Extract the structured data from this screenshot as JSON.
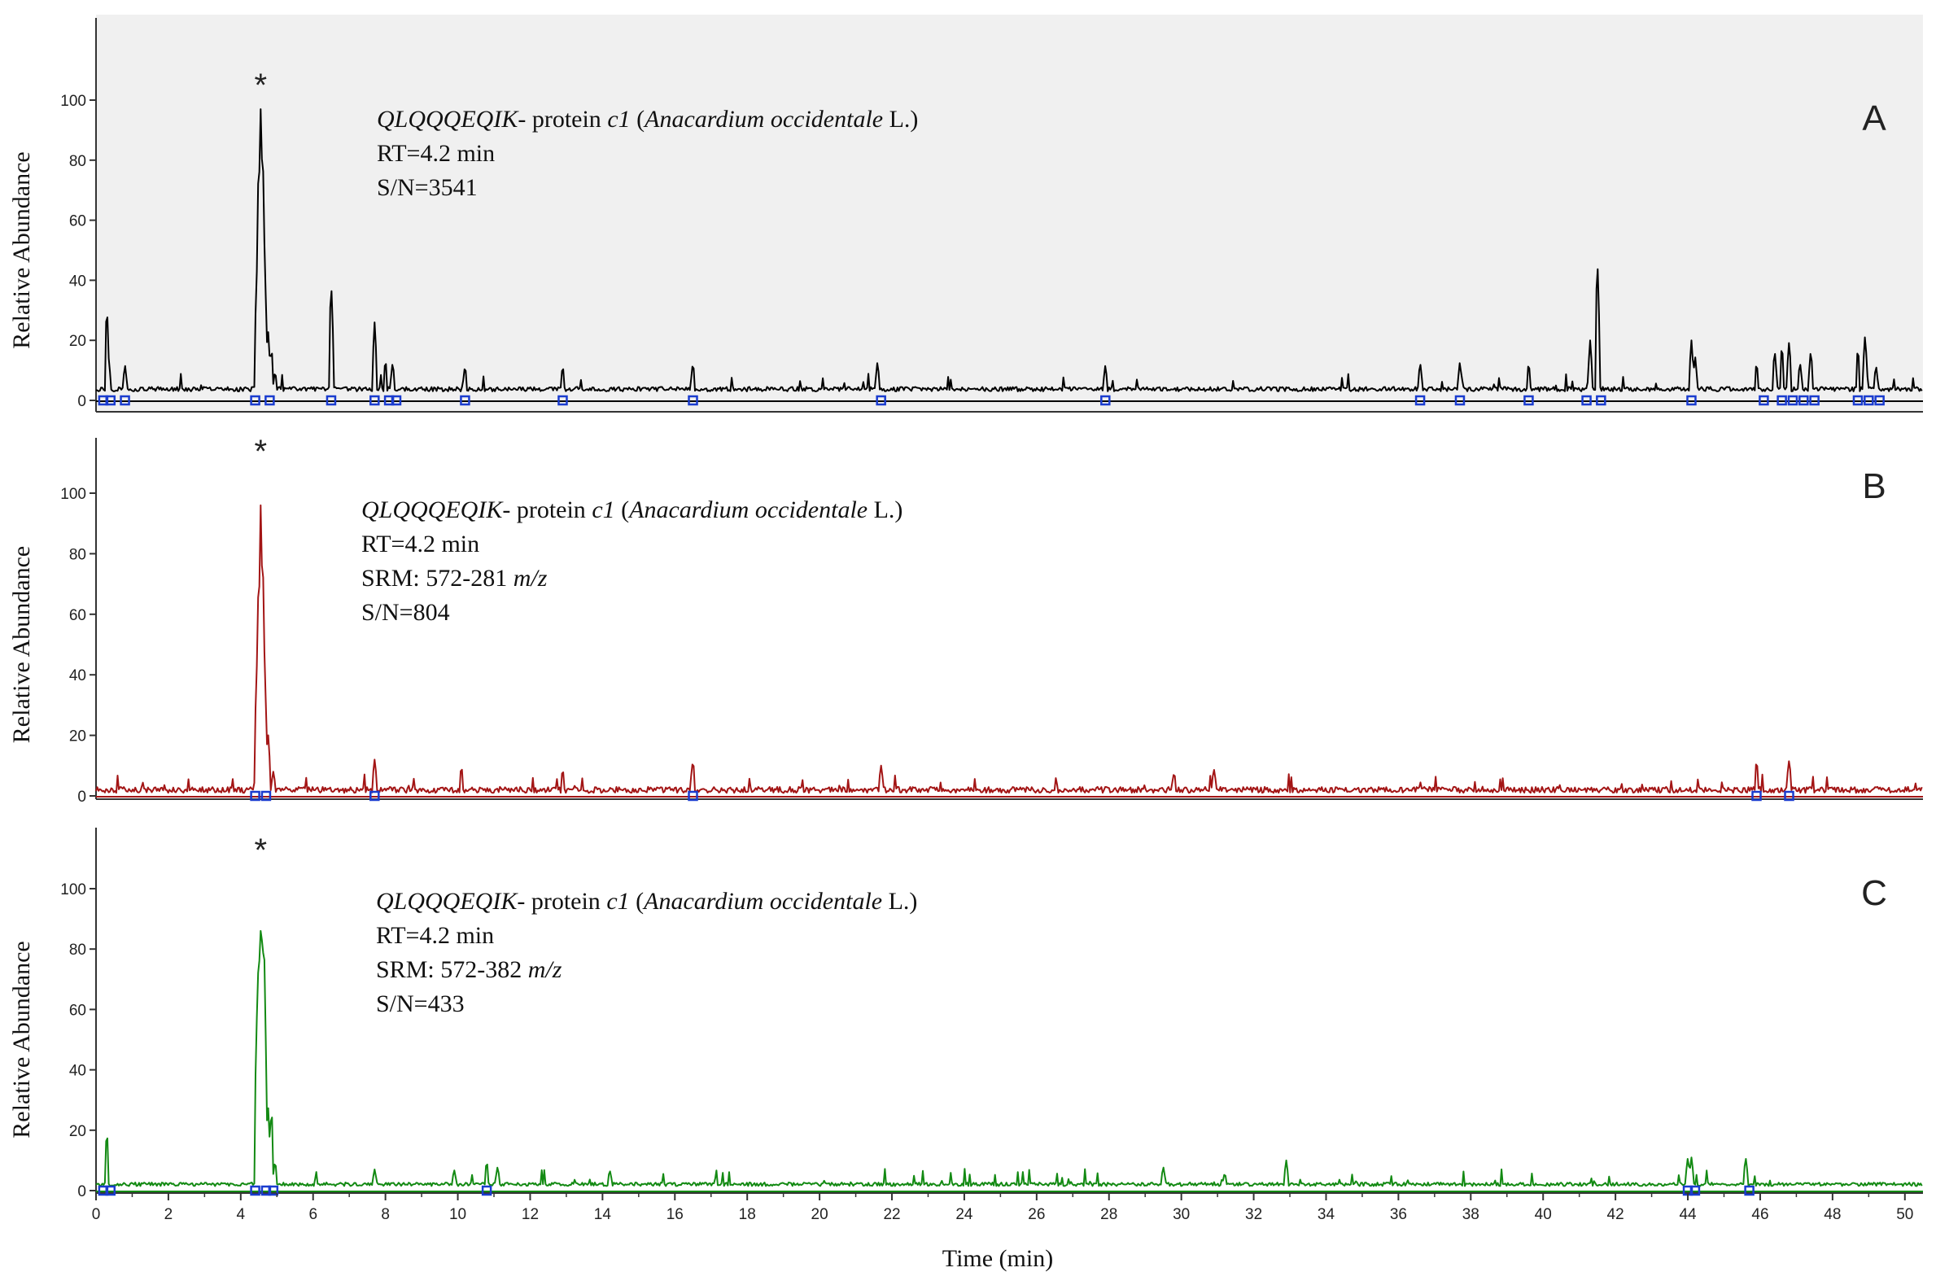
{
  "chart_data": [
    {
      "panel": "A",
      "type": "line",
      "color": "#000000",
      "background": "#f0f0f0",
      "ylabel": "Relative Abundance",
      "ylim": [
        0,
        100
      ],
      "yticks": [
        0,
        20,
        40,
        60,
        80,
        100
      ],
      "annotation": "*",
      "legend_lines": [
        [
          {
            "text": "QLQQQEQIK-",
            "italic": true
          },
          {
            "text": " protein ",
            "italic": false
          },
          {
            "text": "c1",
            "italic": true
          },
          {
            "text": " (",
            "italic": false
          },
          {
            "text": "Anacardium occidentale",
            "italic": true
          },
          {
            "text": " L.)",
            "italic": false
          }
        ],
        [
          {
            "text": "RT=4.2 min",
            "italic": false
          }
        ],
        [
          {
            "text": "S/N=3541",
            "italic": false
          }
        ]
      ],
      "baseline": 3,
      "noise": 1.5,
      "peaks": [
        [
          0.3,
          32
        ],
        [
          0.35,
          14
        ],
        [
          0.8,
          12
        ],
        [
          4.45,
          45
        ],
        [
          4.5,
          88
        ],
        [
          4.55,
          97
        ],
        [
          4.6,
          93
        ],
        [
          4.65,
          55
        ],
        [
          4.75,
          25
        ],
        [
          4.85,
          18
        ],
        [
          4.95,
          10
        ],
        [
          6.5,
          40
        ],
        [
          7.7,
          26
        ],
        [
          8.0,
          14
        ],
        [
          8.2,
          13
        ],
        [
          10.2,
          12
        ],
        [
          12.9,
          12
        ],
        [
          16.5,
          13
        ],
        [
          21.6,
          13
        ],
        [
          27.9,
          12
        ],
        [
          36.6,
          13
        ],
        [
          37.7,
          13
        ],
        [
          39.6,
          13
        ],
        [
          41.3,
          20
        ],
        [
          41.5,
          48
        ],
        [
          44.1,
          20
        ],
        [
          44.2,
          15
        ],
        [
          45.9,
          13
        ],
        [
          46.4,
          17
        ],
        [
          46.6,
          19
        ],
        [
          46.8,
          20
        ],
        [
          47.1,
          13
        ],
        [
          47.4,
          17
        ],
        [
          48.7,
          18
        ],
        [
          48.9,
          22
        ],
        [
          49.2,
          12
        ]
      ],
      "markers": [
        0.2,
        0.4,
        0.8,
        4.4,
        4.8,
        6.5,
        7.7,
        8.1,
        8.3,
        10.2,
        12.9,
        16.5,
        21.7,
        27.9,
        36.6,
        37.7,
        39.6,
        41.2,
        41.6,
        44.1,
        46.1,
        46.6,
        46.9,
        47.2,
        47.5,
        48.7,
        49.0,
        49.3
      ]
    },
    {
      "panel": "B",
      "type": "line",
      "color": "#a31515",
      "background": "#ffffff",
      "ylabel": "Relative Abundance",
      "ylim": [
        0,
        100
      ],
      "yticks": [
        0,
        20,
        40,
        60,
        80,
        100
      ],
      "annotation": "*",
      "legend_lines": [
        [
          {
            "text": "QLQQQEQIK-",
            "italic": true
          },
          {
            "text": " protein ",
            "italic": false
          },
          {
            "text": "c1",
            "italic": true
          },
          {
            "text": " (",
            "italic": false
          },
          {
            "text": "Anacardium occidentale",
            "italic": true
          },
          {
            "text": " L.)",
            "italic": false
          }
        ],
        [
          {
            "text": "RT=4.2 min",
            "italic": false
          }
        ],
        [
          {
            "text": "SRM: 572-281 ",
            "italic": false
          },
          {
            "text": "m/z",
            "italic": true
          }
        ],
        [
          {
            "text": "S/N=804",
            "italic": false
          }
        ]
      ],
      "baseline": 1,
      "noise": 2,
      "peaks": [
        [
          4.45,
          45
        ],
        [
          4.5,
          80
        ],
        [
          4.55,
          96
        ],
        [
          4.6,
          88
        ],
        [
          4.65,
          50
        ],
        [
          4.75,
          22
        ],
        [
          4.9,
          8
        ],
        [
          7.7,
          12
        ],
        [
          10.1,
          10
        ],
        [
          12.9,
          9
        ],
        [
          16.5,
          12
        ],
        [
          21.7,
          10
        ],
        [
          29.8,
          8
        ],
        [
          30.9,
          9
        ],
        [
          45.9,
          12
        ],
        [
          46.8,
          12
        ]
      ],
      "markers": [
        4.4,
        4.7,
        7.7,
        16.5,
        45.9,
        46.8
      ]
    },
    {
      "panel": "C",
      "type": "line",
      "color": "#138a13",
      "background": "#ffffff",
      "ylabel": "Relative Abundance",
      "ylim": [
        0,
        100
      ],
      "yticks": [
        0,
        20,
        40,
        60,
        80,
        100
      ],
      "annotation": "*",
      "legend_lines": [
        [
          {
            "text": "QLQQQEQIK-",
            "italic": true
          },
          {
            "text": " protein ",
            "italic": false
          },
          {
            "text": "c1",
            "italic": true
          },
          {
            "text": " (",
            "italic": false
          },
          {
            "text": "Anacardium occidentale",
            "italic": true
          },
          {
            "text": " L.)",
            "italic": false
          }
        ],
        [
          {
            "text": "RT=4.2 min",
            "italic": false
          }
        ],
        [
          {
            "text": "SRM: 572-382 ",
            "italic": false
          },
          {
            "text": "m/z",
            "italic": true
          }
        ],
        [
          {
            "text": "S/N=433",
            "italic": false
          }
        ]
      ],
      "baseline": 1.5,
      "noise": 1.2,
      "peaks": [
        [
          0.3,
          20
        ],
        [
          4.45,
          60
        ],
        [
          4.5,
          88
        ],
        [
          4.55,
          86
        ],
        [
          4.6,
          96
        ],
        [
          4.65,
          80
        ],
        [
          4.75,
          30
        ],
        [
          4.85,
          28
        ],
        [
          4.95,
          10
        ],
        [
          7.7,
          7
        ],
        [
          9.9,
          7
        ],
        [
          10.8,
          10
        ],
        [
          11.1,
          8
        ],
        [
          14.2,
          7
        ],
        [
          29.5,
          8
        ],
        [
          31.2,
          6
        ],
        [
          32.9,
          10
        ],
        [
          44.0,
          11
        ],
        [
          44.1,
          11
        ],
        [
          45.6,
          11
        ]
      ],
      "markers": [
        0.2,
        0.4,
        4.4,
        4.7,
        4.9,
        10.8,
        44.0,
        44.2,
        45.7
      ]
    }
  ],
  "xaxis": {
    "label": "Time (min)",
    "xlim": [
      0,
      50.5
    ],
    "ticks": [
      0,
      2,
      4,
      6,
      8,
      10,
      12,
      14,
      16,
      18,
      20,
      22,
      24,
      26,
      28,
      30,
      32,
      34,
      36,
      38,
      40,
      42,
      44,
      46,
      48,
      50
    ]
  }
}
